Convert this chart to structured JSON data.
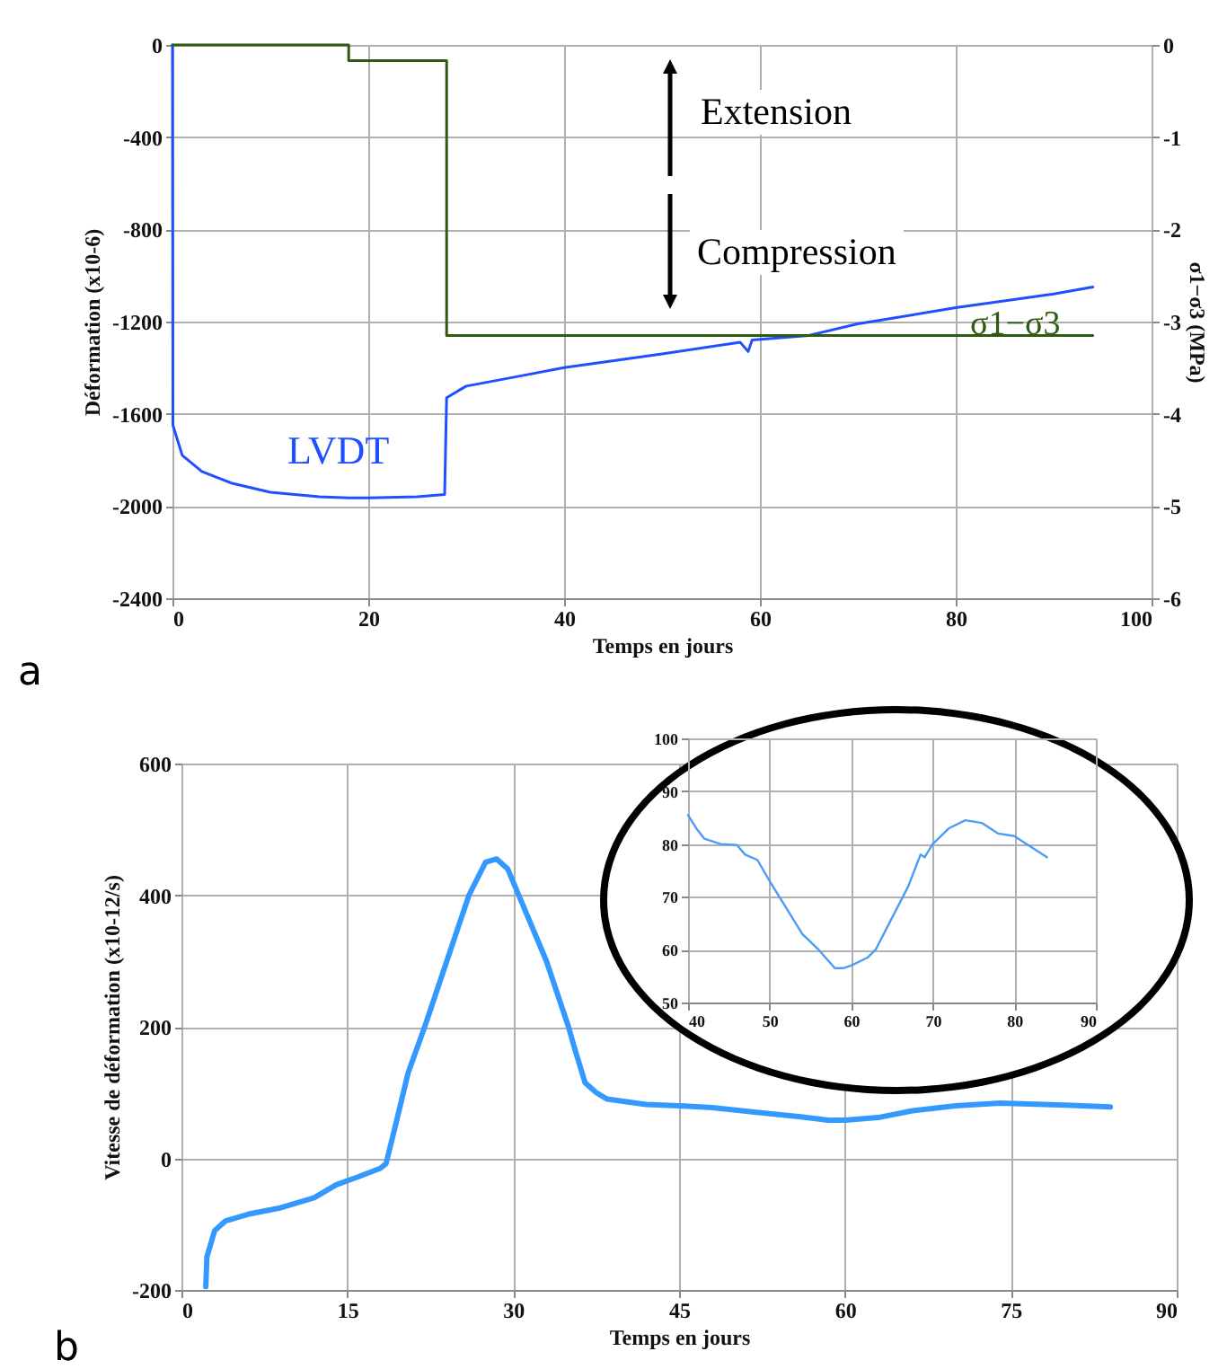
{
  "chart_data": [
    {
      "type": "line",
      "xlabel": "Temps en jours",
      "ylabel": "Déformation (x10-6)",
      "y2label": "σ1−σ3 (MPa)",
      "xlim": [
        0,
        100
      ],
      "xticks": [
        0,
        20,
        40,
        60,
        80,
        100
      ],
      "ylim": [
        -2400,
        0
      ],
      "yticks": [
        -2400,
        -2000,
        -1600,
        -1200,
        -800,
        -400,
        0
      ],
      "y2lim": [
        -6,
        0
      ],
      "y2ticks": [
        -6,
        -5,
        -4,
        -3,
        -2,
        -1,
        0
      ],
      "grid": true,
      "legend": false,
      "annotations": [
        "Extension",
        "Compression",
        "a"
      ],
      "series": [
        {
          "name": "LVDT",
          "color": "#1f4fff",
          "x": [
            0,
            0.05,
            1,
            3,
            6,
            10,
            15,
            18,
            20,
            25,
            27.8,
            28,
            30,
            35,
            40,
            50,
            58,
            58.8,
            59.2,
            65,
            70,
            80,
            90,
            94
          ],
          "values": [
            0,
            -1650,
            -1780,
            -1850,
            -1900,
            -1940,
            -1960,
            -1965,
            -1965,
            -1960,
            -1950,
            -1530,
            -1480,
            -1440,
            -1400,
            -1340,
            -1290,
            -1330,
            -1280,
            -1260,
            -1210,
            -1140,
            -1080,
            -1050
          ]
        },
        {
          "name": "σ1−σ3",
          "color": "#2e5a12",
          "type": "step",
          "axis": "y2",
          "x": [
            0,
            18,
            28,
            94
          ],
          "values": [
            0,
            -0.17,
            -3.15,
            -3.15
          ]
        }
      ]
    },
    {
      "type": "line",
      "xlabel": "Temps en jours",
      "ylabel": "Vitesse de déformation  (x10-12/s)",
      "xlim": [
        0,
        90
      ],
      "xticks": [
        0,
        15,
        30,
        45,
        60,
        75,
        90
      ],
      "ylim": [
        -200,
        600
      ],
      "yticks": [
        -200,
        0,
        200,
        400,
        600
      ],
      "grid": true,
      "legend": false,
      "annotations": [
        "b"
      ],
      "series": [
        {
          "color": "#3399ff",
          "x": [
            2.2,
            2.3,
            3,
            4,
            6,
            9,
            12,
            14,
            16,
            18,
            18.5,
            19.5,
            20.5,
            22,
            24,
            26,
            27.5,
            28.5,
            29.5,
            31,
            33,
            35,
            35.5,
            36.5,
            37.5,
            38.5,
            42,
            45,
            48,
            52,
            56,
            58.5,
            60,
            63,
            66,
            70,
            74,
            76,
            80,
            84
          ],
          "values": [
            -195,
            -150,
            -110,
            -95,
            -85,
            -75,
            -60,
            -40,
            -28,
            -15,
            -8,
            60,
            130,
            200,
            300,
            400,
            450,
            455,
            440,
            380,
            300,
            200,
            170,
            115,
            100,
            90,
            82,
            80,
            77,
            70,
            63,
            58,
            58,
            62,
            72,
            80,
            84,
            83,
            81,
            78
          ]
        }
      ]
    },
    {
      "type": "line",
      "xlim": [
        40,
        90
      ],
      "xticks": [
        40,
        50,
        60,
        70,
        80,
        90
      ],
      "ylim": [
        50,
        100
      ],
      "yticks": [
        50,
        60,
        70,
        80,
        90,
        100
      ],
      "grid": true,
      "legend": false,
      "series": [
        {
          "color": "#4a9cf5",
          "x": [
            40,
            41,
            42,
            44,
            46,
            47,
            48.5,
            50,
            52,
            54,
            56,
            58,
            59,
            60,
            62,
            63,
            65,
            67,
            68.5,
            69,
            70,
            72,
            74,
            76,
            78,
            80,
            82,
            84
          ],
          "values": [
            85.5,
            83,
            81,
            80,
            79.8,
            78,
            77,
            73,
            68,
            63,
            60,
            56.5,
            56.5,
            57,
            58.5,
            60,
            66,
            72,
            78,
            77.5,
            80,
            83,
            84.5,
            84,
            82,
            81.5,
            79.5,
            77.5
          ]
        }
      ]
    }
  ]
}
